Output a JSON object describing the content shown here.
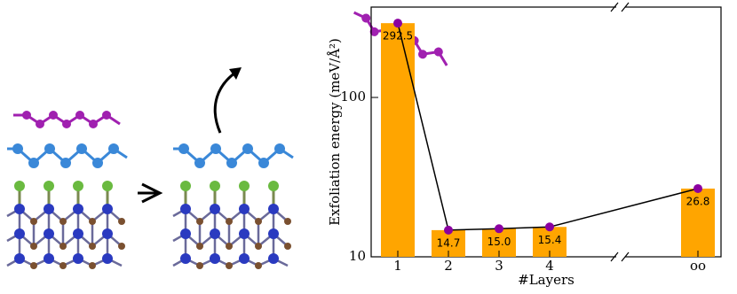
{
  "chart_data": {
    "type": "bar",
    "categories": [
      "1",
      "2",
      "3",
      "4",
      "oo"
    ],
    "values": [
      292.5,
      14.7,
      15.0,
      15.4,
      26.8
    ],
    "value_labels": [
      "292.5",
      "14.7",
      "15.0",
      "15.4",
      "26.8"
    ],
    "color": "#ffa500",
    "line_color": "#000000",
    "marker_color": "#8b00a0",
    "y_label": "Exfoliation energy (meV/Å²)",
    "x_label": "#Layers",
    "log_y": true,
    "ylim": [
      10,
      369
    ],
    "yticks": [
      10,
      100
    ],
    "axis_break": true
  }
}
